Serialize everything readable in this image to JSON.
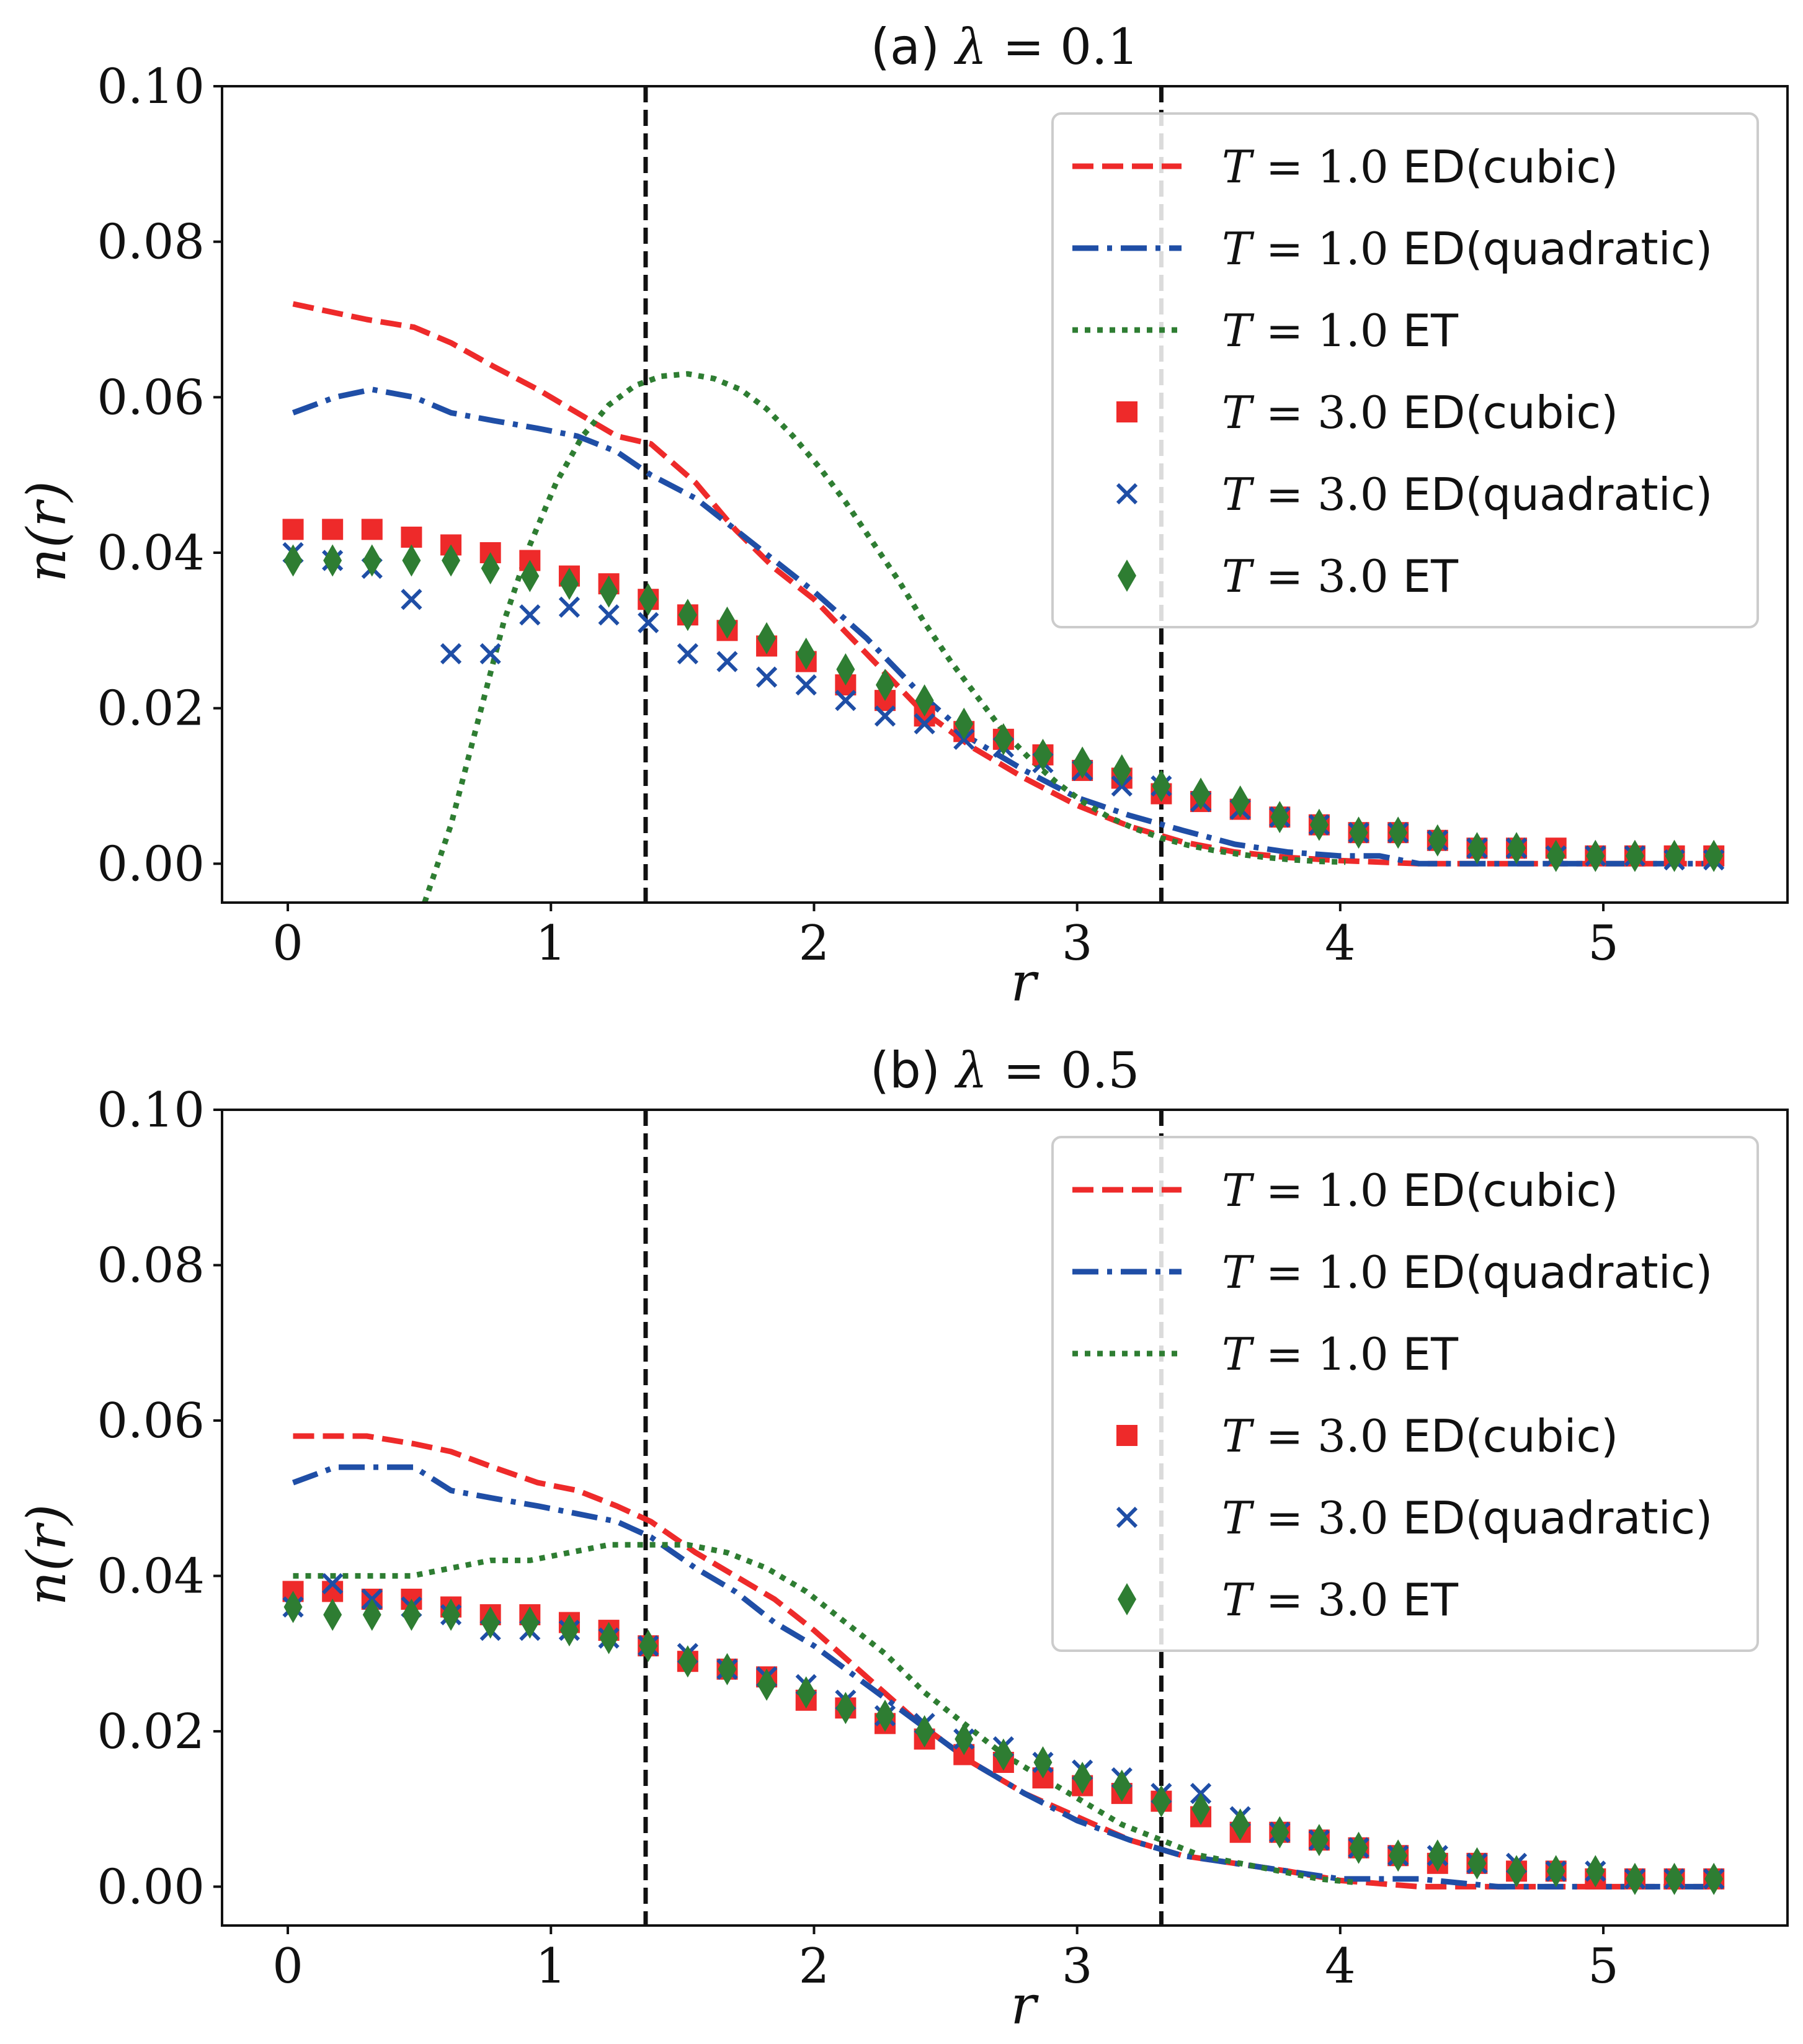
{
  "colors": {
    "red": "#ee2a2a",
    "blue": "#1f4ea6",
    "green": "#2e7d32",
    "vline": "#111111"
  },
  "chart_data": [
    {
      "type": "line",
      "title_prefix": "(a)",
      "title_math": "λ = ",
      "title_value": "0.1",
      "xlabel": "r",
      "ylabel": "n(r)",
      "xlim": [
        -0.25,
        5.7
      ],
      "ylim": [
        -0.005,
        0.1
      ],
      "xticks": [
        "0",
        "1",
        "2",
        "3",
        "4",
        "5"
      ],
      "yticks": [
        "0.00",
        "0.02",
        "0.04",
        "0.06",
        "0.08",
        "0.10"
      ],
      "vlines": [
        1.36,
        3.32
      ],
      "legend_position": "top-right",
      "series": [
        {
          "name": "T = 1.0 ED(cubic)",
          "label_math": "T = ",
          "label_num": "1.0",
          "label_text": " ED(cubic)",
          "style": "dashed",
          "color": "red",
          "x": [
            0.02,
            0.3,
            0.48,
            0.62,
            0.78,
            0.95,
            1.1,
            1.25,
            1.38,
            1.55,
            1.7,
            1.85,
            2.0,
            2.2,
            2.4,
            2.6,
            2.8,
            3.0,
            3.2,
            3.4,
            3.6,
            3.8,
            4.0,
            4.3,
            4.6,
            5.0,
            5.4
          ],
          "y": [
            0.072,
            0.07,
            0.069,
            0.067,
            0.064,
            0.061,
            0.058,
            0.055,
            0.054,
            0.049,
            0.043,
            0.038,
            0.034,
            0.027,
            0.02,
            0.015,
            0.011,
            0.0075,
            0.0048,
            0.0028,
            0.0015,
            0.0008,
            0.0004,
            0.0,
            0.0,
            0.0,
            0.0
          ]
        },
        {
          "name": "T = 1.0 ED(quadratic)",
          "label_math": "T = ",
          "label_num": "1.0",
          "label_text": " ED(quadratic)",
          "style": "dashdot",
          "color": "blue",
          "x": [
            0.02,
            0.18,
            0.32,
            0.48,
            0.62,
            0.78,
            0.95,
            1.1,
            1.25,
            1.38,
            1.55,
            1.7,
            1.85,
            2.0,
            2.2,
            2.4,
            2.6,
            2.8,
            3.0,
            3.2,
            3.4,
            3.6,
            3.8,
            4.0,
            4.15,
            4.3,
            4.6,
            5.0,
            5.4
          ],
          "y": [
            0.058,
            0.06,
            0.061,
            0.06,
            0.058,
            0.057,
            0.056,
            0.055,
            0.053,
            0.05,
            0.047,
            0.043,
            0.039,
            0.035,
            0.029,
            0.022,
            0.016,
            0.012,
            0.0085,
            0.0062,
            0.0043,
            0.0025,
            0.0015,
            0.001,
            0.001,
            0.0,
            0.0,
            0.0,
            0.0
          ]
        },
        {
          "name": "T = 1.0 ET",
          "label_math": "T = ",
          "label_num": "1.0",
          "label_text": " ET",
          "style": "dotted",
          "color": "green",
          "x": [
            0.52,
            0.62,
            0.72,
            0.82,
            0.92,
            1.02,
            1.12,
            1.22,
            1.32,
            1.42,
            1.52,
            1.62,
            1.72,
            1.82,
            1.92,
            2.02,
            2.12,
            2.22,
            2.32,
            2.42,
            2.52,
            2.62,
            2.72,
            2.82,
            2.92,
            3.02,
            3.12,
            3.22,
            3.32,
            3.42,
            3.52,
            3.62,
            3.72,
            3.82,
            3.92,
            4.02
          ],
          "y": [
            -0.005,
            0.005,
            0.018,
            0.031,
            0.041,
            0.049,
            0.055,
            0.059,
            0.0615,
            0.0627,
            0.063,
            0.0624,
            0.061,
            0.0585,
            0.055,
            0.051,
            0.0465,
            0.0415,
            0.0365,
            0.031,
            0.026,
            0.0215,
            0.017,
            0.0135,
            0.0105,
            0.008,
            0.006,
            0.0045,
            0.0033,
            0.0024,
            0.0017,
            0.0012,
            0.0008,
            0.0005,
            0.0003,
            0.0002
          ]
        },
        {
          "name": "T = 3.0 ED(cubic)",
          "label_math": "T = ",
          "label_num": "3.0",
          "label_text": " ED(cubic)",
          "style": "square",
          "color": "red",
          "x": [
            0.02,
            0.17,
            0.32,
            0.47,
            0.62,
            0.77,
            0.92,
            1.07,
            1.22,
            1.37,
            1.52,
            1.67,
            1.82,
            1.97,
            2.12,
            2.27,
            2.42,
            2.57,
            2.72,
            2.87,
            3.02,
            3.17,
            3.32,
            3.47,
            3.62,
            3.77,
            3.92,
            4.07,
            4.22,
            4.37,
            4.52,
            4.67,
            4.82,
            4.97,
            5.12,
            5.27,
            5.42
          ],
          "y": [
            0.043,
            0.043,
            0.043,
            0.042,
            0.041,
            0.04,
            0.039,
            0.037,
            0.036,
            0.034,
            0.032,
            0.03,
            0.028,
            0.026,
            0.023,
            0.021,
            0.019,
            0.017,
            0.016,
            0.014,
            0.012,
            0.011,
            0.009,
            0.008,
            0.007,
            0.006,
            0.005,
            0.004,
            0.004,
            0.003,
            0.002,
            0.002,
            0.002,
            0.001,
            0.001,
            0.001,
            0.001
          ]
        },
        {
          "name": "T = 3.0 ED(quadratic)",
          "label_math": "T = ",
          "label_num": "3.0",
          "label_text": " ED(quadratic)",
          "style": "cross",
          "color": "blue",
          "x": [
            0.02,
            0.17,
            0.32,
            0.47,
            0.62,
            0.77,
            0.92,
            1.07,
            1.22,
            1.37,
            1.52,
            1.67,
            1.82,
            1.97,
            2.12,
            2.27,
            2.42,
            2.57,
            2.72,
            2.87,
            3.02,
            3.17,
            3.32,
            3.47,
            3.62,
            3.77,
            3.92,
            4.07,
            4.22,
            4.37,
            4.52,
            4.67,
            4.82,
            4.97,
            5.12,
            5.27,
            5.42
          ],
          "y": [
            0.04,
            0.039,
            0.038,
            0.034,
            0.027,
            0.027,
            0.032,
            0.033,
            0.032,
            0.031,
            0.027,
            0.026,
            0.024,
            0.023,
            0.021,
            0.019,
            0.018,
            0.016,
            0.015,
            0.013,
            0.012,
            0.01,
            0.01,
            0.008,
            0.007,
            0.006,
            0.005,
            0.004,
            0.004,
            0.003,
            0.002,
            0.002,
            0.001,
            0.001,
            0.001,
            0.0005,
            0.0005
          ]
        },
        {
          "name": "T = 3.0 ET",
          "label_math": "T = ",
          "label_num": "3.0",
          "label_text": " ET",
          "style": "diamond",
          "color": "green",
          "x": [
            0.02,
            0.17,
            0.32,
            0.47,
            0.62,
            0.77,
            0.92,
            1.07,
            1.22,
            1.37,
            1.52,
            1.67,
            1.82,
            1.97,
            2.12,
            2.27,
            2.42,
            2.57,
            2.72,
            2.87,
            3.02,
            3.17,
            3.32,
            3.47,
            3.62,
            3.77,
            3.92,
            4.07,
            4.22,
            4.37,
            4.52,
            4.67,
            4.82,
            4.97,
            5.12,
            5.27,
            5.42
          ],
          "y": [
            0.039,
            0.039,
            0.039,
            0.039,
            0.039,
            0.038,
            0.037,
            0.036,
            0.035,
            0.034,
            0.032,
            0.031,
            0.029,
            0.027,
            0.025,
            0.023,
            0.021,
            0.018,
            0.016,
            0.014,
            0.013,
            0.012,
            0.01,
            0.009,
            0.008,
            0.006,
            0.005,
            0.004,
            0.004,
            0.003,
            0.002,
            0.002,
            0.001,
            0.001,
            0.001,
            0.001,
            0.001
          ]
        }
      ]
    },
    {
      "type": "line",
      "title_prefix": "(b)",
      "title_math": "λ = ",
      "title_value": "0.5",
      "xlabel": "r",
      "ylabel": "n(r)",
      "xlim": [
        -0.25,
        5.7
      ],
      "ylim": [
        -0.005,
        0.1
      ],
      "xticks": [
        "0",
        "1",
        "2",
        "3",
        "4",
        "5"
      ],
      "yticks": [
        "0.00",
        "0.02",
        "0.04",
        "0.06",
        "0.08",
        "0.10"
      ],
      "vlines": [
        1.36,
        3.32
      ],
      "legend_position": "top-right",
      "series": [
        {
          "name": "T = 1.0 ED(cubic)",
          "label_math": "T = ",
          "label_num": "1.0",
          "label_text": " ED(cubic)",
          "style": "dashed",
          "color": "red",
          "x": [
            0.02,
            0.3,
            0.48,
            0.62,
            0.78,
            0.95,
            1.1,
            1.25,
            1.38,
            1.55,
            1.7,
            1.85,
            2.0,
            2.2,
            2.4,
            2.6,
            2.8,
            3.0,
            3.2,
            3.4,
            3.6,
            3.8,
            4.0,
            4.3,
            4.6,
            5.0,
            5.4
          ],
          "y": [
            0.058,
            0.058,
            0.057,
            0.056,
            0.054,
            0.052,
            0.051,
            0.049,
            0.047,
            0.043,
            0.04,
            0.037,
            0.033,
            0.027,
            0.021,
            0.016,
            0.012,
            0.009,
            0.006,
            0.004,
            0.003,
            0.002,
            0.0008,
            0.0,
            0.0,
            0.0,
            0.0
          ]
        },
        {
          "name": "T = 1.0 ED(quadratic)",
          "label_math": "T = ",
          "label_num": "1.0",
          "label_text": " ED(quadratic)",
          "style": "dashdot",
          "color": "blue",
          "x": [
            0.02,
            0.18,
            0.32,
            0.48,
            0.62,
            0.78,
            0.95,
            1.1,
            1.25,
            1.38,
            1.55,
            1.7,
            1.85,
            2.0,
            2.2,
            2.4,
            2.6,
            2.8,
            3.0,
            3.2,
            3.4,
            3.6,
            3.8,
            4.0,
            4.15,
            4.3,
            4.6,
            5.0,
            5.4
          ],
          "y": [
            0.052,
            0.054,
            0.054,
            0.054,
            0.051,
            0.05,
            0.049,
            0.048,
            0.047,
            0.045,
            0.041,
            0.038,
            0.034,
            0.031,
            0.026,
            0.021,
            0.016,
            0.012,
            0.0085,
            0.006,
            0.004,
            0.003,
            0.002,
            0.001,
            0.001,
            0.001,
            0.0,
            0.0,
            0.0
          ]
        },
        {
          "name": "T = 1.0 ET",
          "label_math": "T = ",
          "label_num": "1.0",
          "label_text": " ET",
          "style": "dotted",
          "color": "green",
          "x": [
            0.02,
            0.17,
            0.32,
            0.47,
            0.62,
            0.77,
            0.92,
            1.07,
            1.22,
            1.37,
            1.52,
            1.67,
            1.82,
            1.97,
            2.12,
            2.27,
            2.42,
            2.57,
            2.72,
            2.87,
            3.02,
            3.17,
            3.32,
            3.47,
            3.62,
            3.77,
            3.92,
            4.07
          ],
          "y": [
            0.04,
            0.04,
            0.04,
            0.04,
            0.041,
            0.042,
            0.042,
            0.043,
            0.044,
            0.044,
            0.044,
            0.043,
            0.041,
            0.038,
            0.034,
            0.03,
            0.025,
            0.021,
            0.017,
            0.014,
            0.011,
            0.008,
            0.006,
            0.004,
            0.003,
            0.002,
            0.001,
            0.0005
          ]
        },
        {
          "name": "T = 3.0 ED(cubic)",
          "label_math": "T = ",
          "label_num": "3.0",
          "label_text": " ED(cubic)",
          "style": "square",
          "color": "red",
          "x": [
            0.02,
            0.17,
            0.32,
            0.47,
            0.62,
            0.77,
            0.92,
            1.07,
            1.22,
            1.37,
            1.52,
            1.67,
            1.82,
            1.97,
            2.12,
            2.27,
            2.42,
            2.57,
            2.72,
            2.87,
            3.02,
            3.17,
            3.32,
            3.47,
            3.62,
            3.77,
            3.92,
            4.07,
            4.22,
            4.37,
            4.52,
            4.67,
            4.82,
            4.97,
            5.12,
            5.27,
            5.42
          ],
          "y": [
            0.038,
            0.038,
            0.037,
            0.037,
            0.036,
            0.035,
            0.035,
            0.034,
            0.033,
            0.031,
            0.029,
            0.028,
            0.027,
            0.024,
            0.023,
            0.021,
            0.019,
            0.017,
            0.016,
            0.014,
            0.013,
            0.012,
            0.011,
            0.009,
            0.007,
            0.007,
            0.006,
            0.005,
            0.004,
            0.003,
            0.003,
            0.002,
            0.002,
            0.001,
            0.001,
            0.001,
            0.001
          ]
        },
        {
          "name": "T = 3.0 ED(quadratic)",
          "label_math": "T = ",
          "label_num": "3.0",
          "label_text": " ED(quadratic)",
          "style": "cross",
          "color": "blue",
          "x": [
            0.02,
            0.17,
            0.32,
            0.47,
            0.62,
            0.77,
            0.92,
            1.07,
            1.22,
            1.37,
            1.52,
            1.67,
            1.82,
            1.97,
            2.12,
            2.27,
            2.42,
            2.57,
            2.72,
            2.87,
            3.02,
            3.17,
            3.32,
            3.47,
            3.62,
            3.77,
            3.92,
            4.07,
            4.22,
            4.37,
            4.52,
            4.67,
            4.82,
            4.97,
            5.12,
            5.27,
            5.42
          ],
          "y": [
            0.036,
            0.039,
            0.037,
            0.036,
            0.035,
            0.033,
            0.033,
            0.033,
            0.032,
            0.031,
            0.03,
            0.028,
            0.027,
            0.026,
            0.024,
            0.022,
            0.021,
            0.019,
            0.018,
            0.016,
            0.015,
            0.014,
            0.012,
            0.012,
            0.009,
            0.007,
            0.006,
            0.005,
            0.004,
            0.004,
            0.003,
            0.003,
            0.002,
            0.002,
            0.001,
            0.001,
            0.001
          ]
        },
        {
          "name": "T = 3.0 ET",
          "label_math": "T = ",
          "label_num": "3.0",
          "label_text": " ET",
          "style": "diamond",
          "color": "green",
          "x": [
            0.02,
            0.17,
            0.32,
            0.47,
            0.62,
            0.77,
            0.92,
            1.07,
            1.22,
            1.37,
            1.52,
            1.67,
            1.82,
            1.97,
            2.12,
            2.27,
            2.42,
            2.57,
            2.72,
            2.87,
            3.02,
            3.17,
            3.32,
            3.47,
            3.62,
            3.77,
            3.92,
            4.07,
            4.22,
            4.37,
            4.52,
            4.67,
            4.82,
            4.97,
            5.12,
            5.27,
            5.42
          ],
          "y": [
            0.036,
            0.035,
            0.035,
            0.035,
            0.035,
            0.034,
            0.034,
            0.033,
            0.032,
            0.031,
            0.029,
            0.028,
            0.026,
            0.025,
            0.023,
            0.022,
            0.02,
            0.019,
            0.017,
            0.016,
            0.014,
            0.013,
            0.011,
            0.01,
            0.008,
            0.007,
            0.006,
            0.005,
            0.004,
            0.004,
            0.003,
            0.002,
            0.002,
            0.002,
            0.001,
            0.001,
            0.001
          ]
        }
      ]
    }
  ]
}
